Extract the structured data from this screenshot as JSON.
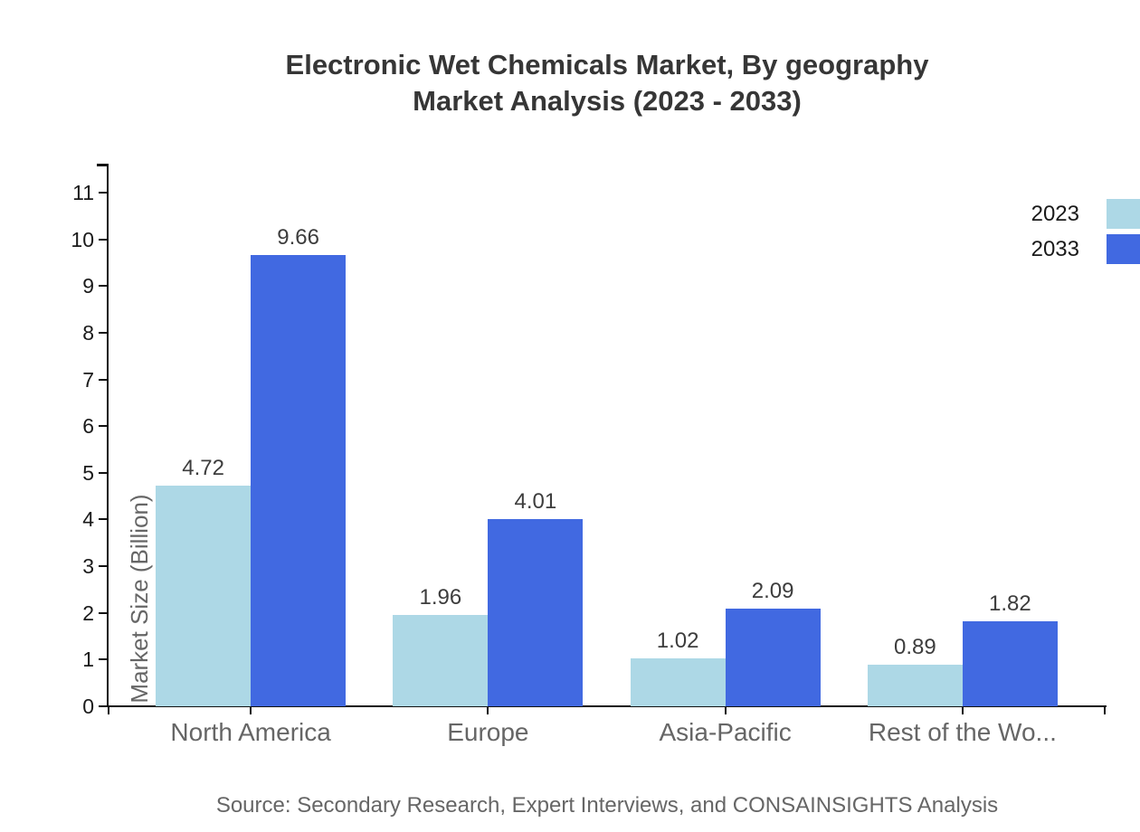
{
  "title": {
    "line1": "Electronic Wet Chemicals Market, By geography",
    "line2": "Market Analysis (2023 - 2033)"
  },
  "source": "Source: Secondary Research, Expert Interviews, and CONSAINSIGHTS Analysis",
  "chart_data": {
    "type": "bar",
    "title": "Electronic Wet Chemicals Market, By geography Market Analysis (2023 - 2033)",
    "categories": [
      "North America",
      "Europe",
      "Asia-Pacific",
      "Rest of the Wo..."
    ],
    "series": [
      {
        "name": "2023",
        "color": "#ADD8E6",
        "values": [
          4.72,
          1.96,
          1.02,
          0.89
        ]
      },
      {
        "name": "2033",
        "color": "#4169E1",
        "values": [
          9.66,
          4.01,
          2.09,
          1.82
        ]
      }
    ],
    "xlabel": "",
    "ylabel": "Market Size (Billion)",
    "ylim": [
      0,
      11
    ],
    "yticks": [
      0,
      1,
      2,
      3,
      4,
      5,
      6,
      7,
      8,
      9,
      10,
      11
    ],
    "grid": false,
    "legend_position": "top-right",
    "value_labels": true,
    "value_label_decimals": 2
  }
}
